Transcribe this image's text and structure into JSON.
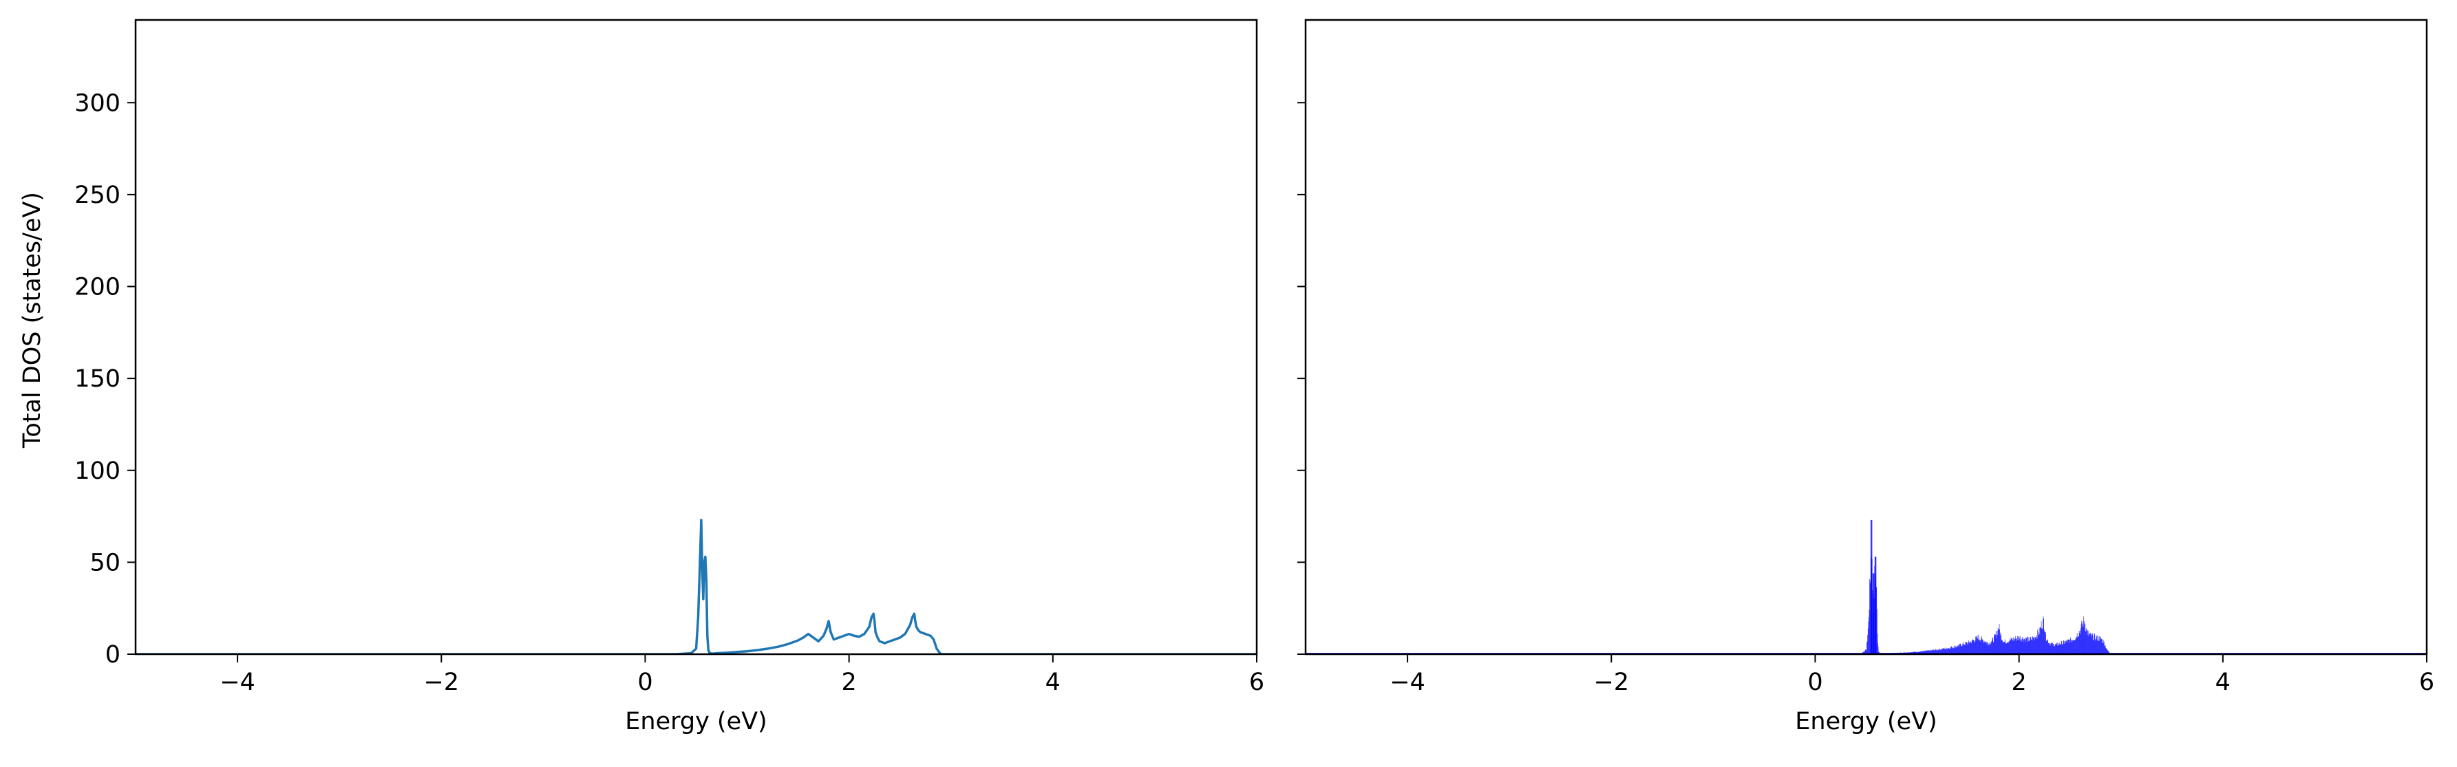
{
  "chart_data": [
    {
      "type": "line",
      "panel": "left",
      "title": "",
      "xlabel": "Energy (eV)",
      "ylabel": "Total DOS (states/eV)",
      "xlim": [
        -5,
        6
      ],
      "ylim": [
        0,
        345
      ],
      "xticks": [
        -4,
        -2,
        0,
        2,
        4,
        6
      ],
      "xtick_labels": [
        "−4",
        "−2",
        "0",
        "2",
        "4",
        "6"
      ],
      "yticks": [
        0,
        50,
        100,
        150,
        200,
        250,
        300
      ],
      "ytick_labels": [
        "0",
        "50",
        "100",
        "150",
        "200",
        "250",
        "300"
      ],
      "grid": false,
      "color": "#1f77b4",
      "series": [
        {
          "x": [
            -5,
            0.0,
            0.3,
            0.45,
            0.5,
            0.52,
            0.54,
            0.55,
            0.56,
            0.57,
            0.58,
            0.59,
            0.6,
            0.61,
            0.62,
            0.63,
            0.64,
            0.66,
            0.7,
            0.8,
            0.9,
            1.0,
            1.1,
            1.2,
            1.3,
            1.4,
            1.5,
            1.55,
            1.6,
            1.65,
            1.7,
            1.75,
            1.78,
            1.8,
            1.82,
            1.85,
            1.9,
            1.95,
            2.0,
            2.05,
            2.1,
            2.15,
            2.2,
            2.22,
            2.24,
            2.25,
            2.26,
            2.28,
            2.3,
            2.35,
            2.4,
            2.45,
            2.5,
            2.55,
            2.6,
            2.62,
            2.64,
            2.65,
            2.66,
            2.68,
            2.7,
            2.75,
            2.8,
            2.83,
            2.86,
            2.9,
            3.0,
            6
          ],
          "y": [
            0,
            0,
            0,
            0.5,
            3,
            20,
            55,
            73,
            45,
            30,
            50,
            53,
            40,
            10,
            2,
            1,
            0.5,
            0.3,
            0.5,
            0.8,
            1.2,
            1.6,
            2.2,
            3,
            4,
            5.5,
            7.5,
            9,
            11,
            9,
            7,
            10,
            14,
            18,
            12,
            8,
            9,
            10,
            11,
            10,
            9.5,
            11,
            15,
            20,
            22,
            18,
            12,
            9,
            7,
            6,
            7,
            8,
            9,
            11,
            16,
            20,
            22,
            18,
            15,
            13,
            12,
            11,
            10,
            8,
            3,
            0,
            0,
            0
          ]
        }
      ]
    },
    {
      "type": "bar",
      "panel": "right",
      "title": "",
      "xlabel": "Energy (eV)",
      "ylabel": "",
      "xlim": [
        -5,
        6
      ],
      "ylim": [
        0,
        345
      ],
      "xticks": [
        -4,
        -2,
        0,
        2,
        4,
        6
      ],
      "xtick_labels": [
        "−4",
        "−2",
        "0",
        "2",
        "4",
        "6"
      ],
      "yticks": [
        0,
        50,
        100,
        150,
        200,
        250,
        300
      ],
      "ytick_labels": [
        "",
        "",
        "",
        "",
        "",
        "",
        ""
      ],
      "grid": false,
      "color": "#0000ff",
      "note_bins": "dense histogram of the same DOS; envelope below",
      "series": [
        {
          "x": [
            -5,
            0.0,
            0.3,
            0.45,
            0.5,
            0.52,
            0.54,
            0.55,
            0.56,
            0.57,
            0.58,
            0.59,
            0.6,
            0.61,
            0.62,
            0.63,
            0.64,
            0.66,
            0.7,
            0.8,
            0.9,
            1.0,
            1.1,
            1.2,
            1.3,
            1.4,
            1.5,
            1.55,
            1.6,
            1.65,
            1.7,
            1.75,
            1.78,
            1.8,
            1.82,
            1.85,
            1.9,
            1.95,
            2.0,
            2.05,
            2.1,
            2.15,
            2.2,
            2.22,
            2.24,
            2.25,
            2.26,
            2.28,
            2.3,
            2.35,
            2.4,
            2.45,
            2.5,
            2.55,
            2.6,
            2.62,
            2.64,
            2.65,
            2.66,
            2.68,
            2.7,
            2.75,
            2.8,
            2.83,
            2.86,
            2.9,
            3.0,
            6
          ],
          "y": [
            0,
            0,
            0,
            0.5,
            3,
            20,
            55,
            73,
            45,
            30,
            50,
            53,
            40,
            10,
            2,
            1,
            0.5,
            0.3,
            0.5,
            0.8,
            1.2,
            1.6,
            2.2,
            3,
            4,
            5.5,
            7.5,
            9,
            11,
            9,
            7,
            10,
            14,
            18,
            12,
            8,
            9,
            10,
            11,
            10,
            9.5,
            11,
            15,
            20,
            22,
            18,
            12,
            9,
            7,
            6,
            7,
            8,
            9,
            11,
            16,
            20,
            22,
            18,
            15,
            13,
            12,
            11,
            10,
            8,
            3,
            0,
            0,
            0
          ]
        }
      ]
    }
  ]
}
